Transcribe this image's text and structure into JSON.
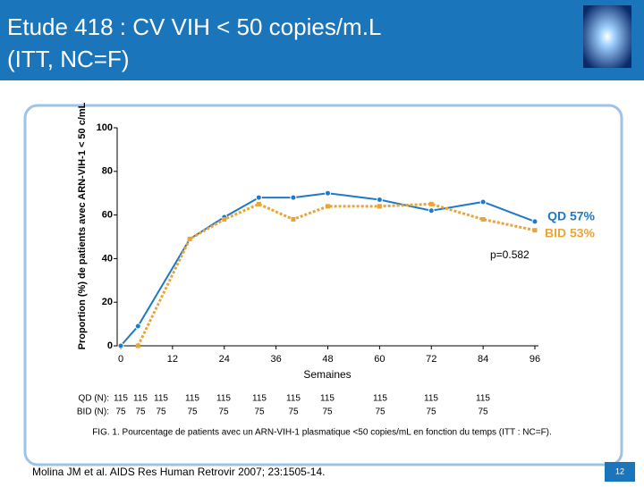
{
  "chart_data": {
    "type": "line",
    "title": [
      "Etude 418 : CV VIH < 50 copies/m.L",
      "(ITT, NC=F)"
    ],
    "ylabel": "Proportion (%) de patients avec ARN-VIH-1 < 50 c/mL",
    "xlabel": "Semaines",
    "xlim": [
      0,
      96
    ],
    "xticks": [
      0,
      12,
      24,
      36,
      48,
      60,
      72,
      84,
      96
    ],
    "ylim": [
      0,
      100
    ],
    "yticks": [
      0,
      20,
      40,
      60,
      80,
      100
    ],
    "series": [
      {
        "label": "QD 57%",
        "color": "#1f78c8",
        "x": [
          0,
          4,
          16,
          24,
          32,
          40,
          48,
          60,
          72,
          84,
          96
        ],
        "values": [
          0,
          9,
          49,
          59,
          68,
          68,
          70,
          67,
          62,
          66,
          57
        ]
      },
      {
        "label": "BID 53%",
        "color": "#e8a53a",
        "x": [
          4,
          16,
          24,
          32,
          40,
          48,
          60,
          72,
          84,
          96
        ],
        "values": [
          0,
          49,
          58,
          65,
          58,
          64,
          64,
          65,
          58,
          53
        ]
      }
    ],
    "annotation": "p=0.582",
    "n_table": [
      {
        "label": "QD (N):",
        "values": [
          "115",
          "115",
          "115",
          "115",
          "115",
          "115",
          "115",
          "115",
          "115",
          "115",
          "115"
        ]
      },
      {
        "label": "BID (N):",
        "values": [
          "75",
          "75",
          "75",
          "75",
          "75",
          "75",
          "75",
          "75",
          "75",
          "75",
          "75"
        ]
      }
    ],
    "caption": "FIG. 1. Pourcentage de patients avec un ARN-VIH-1 plasmatique <50 copies/mL en fonction du temps (ITT : NC=F).",
    "footer": "Molina JM et al. AIDS Res Human Retrovir 2007; 23:1505-14.",
    "page_number": "12"
  }
}
